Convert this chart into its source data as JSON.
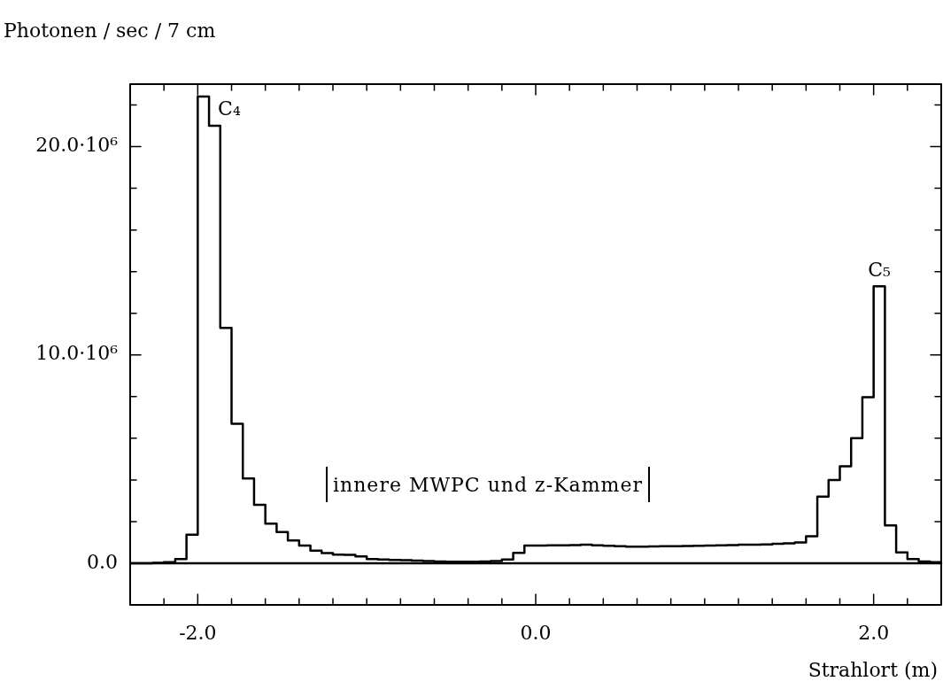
{
  "chart_data": {
    "type": "histogram",
    "ylabel": "Photonen / sec / 7 cm",
    "xlabel": "Strahlort (m)",
    "bins": [
      -2.4,
      -2.333,
      -2.267,
      -2.2,
      -2.133,
      -2.067,
      -2.0,
      -1.933,
      -1.867,
      -1.8,
      -1.733,
      -1.667,
      -1.6,
      -1.533,
      -1.467,
      -1.4,
      -1.333,
      -1.267,
      -1.2,
      -1.133,
      -1.067,
      -1.0,
      -0.933,
      -0.867,
      -0.8,
      -0.733,
      -0.667,
      -0.6,
      -0.533,
      -0.467,
      -0.4,
      -0.333,
      -0.267,
      -0.2,
      -0.133,
      -0.067,
      0.0,
      0.067,
      0.133,
      0.2,
      0.267,
      0.333,
      0.4,
      0.467,
      0.533,
      0.6,
      0.667,
      0.733,
      0.8,
      0.867,
      0.933,
      1.0,
      1.067,
      1.133,
      1.2,
      1.267,
      1.333,
      1.4,
      1.467,
      1.533,
      1.6,
      1.667,
      1.733,
      1.8,
      1.867,
      1.933,
      2.0,
      2.067,
      2.133,
      2.2,
      2.267,
      2.333,
      2.4
    ],
    "values": [
      0,
      0,
      20000,
      50000,
      200000,
      1370000,
      22400000,
      21000000,
      11300000,
      6700000,
      4070000,
      2800000,
      1900000,
      1500000,
      1090000,
      850000,
      600000,
      490000,
      410000,
      400000,
      330000,
      200000,
      180000,
      160000,
      150000,
      130000,
      100000,
      80000,
      70000,
      70000,
      70000,
      80000,
      100000,
      180000,
      500000,
      850000,
      850000,
      860000,
      860000,
      870000,
      890000,
      860000,
      840000,
      820000,
      800000,
      800000,
      810000,
      820000,
      820000,
      830000,
      840000,
      850000,
      860000,
      870000,
      890000,
      890000,
      900000,
      930000,
      960000,
      1000000,
      1300000,
      3200000,
      4000000,
      4650000,
      6000000,
      7970000,
      13300000,
      1820000,
      520000,
      200000,
      80000,
      50000
    ],
    "color": "#000000",
    "xlim": [
      -2.4,
      2.4
    ],
    "xticks": [
      {
        "value": -2.2,
        "label": null
      },
      {
        "value": -2.0,
        "label": "-2.0"
      },
      {
        "value": -1.8,
        "label": null
      },
      {
        "value": -1.6,
        "label": null
      },
      {
        "value": -1.4,
        "label": null
      },
      {
        "value": -1.2,
        "label": null
      },
      {
        "value": -1.0,
        "label": null
      },
      {
        "value": -0.8,
        "label": null
      },
      {
        "value": -0.6,
        "label": null
      },
      {
        "value": -0.4,
        "label": null
      },
      {
        "value": -0.2,
        "label": null
      },
      {
        "value": 0.0,
        "label": "0.0"
      },
      {
        "value": 0.2,
        "label": null
      },
      {
        "value": 0.4,
        "label": null
      },
      {
        "value": 0.6,
        "label": null
      },
      {
        "value": 0.8,
        "label": null
      },
      {
        "value": 1.0,
        "label": null
      },
      {
        "value": 1.2,
        "label": null
      },
      {
        "value": 1.4,
        "label": null
      },
      {
        "value": 1.6,
        "label": null
      },
      {
        "value": 1.8,
        "label": null
      },
      {
        "value": 2.0,
        "label": "2.0"
      },
      {
        "value": 2.2,
        "label": null
      }
    ],
    "ylim": [
      -2000000,
      23000000
    ],
    "yticks": [
      {
        "value": 0,
        "label": "0.0"
      },
      {
        "value": 2000000,
        "label": null
      },
      {
        "value": 4000000,
        "label": null
      },
      {
        "value": 6000000,
        "label": null
      },
      {
        "value": 8000000,
        "label": null
      },
      {
        "value": 10000000,
        "label": "10.0·10⁶"
      },
      {
        "value": 12000000,
        "label": null
      },
      {
        "value": 14000000,
        "label": null
      },
      {
        "value": 16000000,
        "label": null
      },
      {
        "value": 18000000,
        "label": null
      },
      {
        "value": 20000000,
        "label": "20.0·10⁶"
      },
      {
        "value": 22000000,
        "label": null
      }
    ],
    "ref_lines": [
      {
        "axis": "y",
        "value": 0
      }
    ],
    "annotations": [
      "innere MWPC und z-Kammer",
      {
        "text": "C₄",
        "x": -1.933,
        "y": 22400000
      },
      {
        "text": "C₅",
        "x": 2.033,
        "y": 13300000
      }
    ]
  }
}
